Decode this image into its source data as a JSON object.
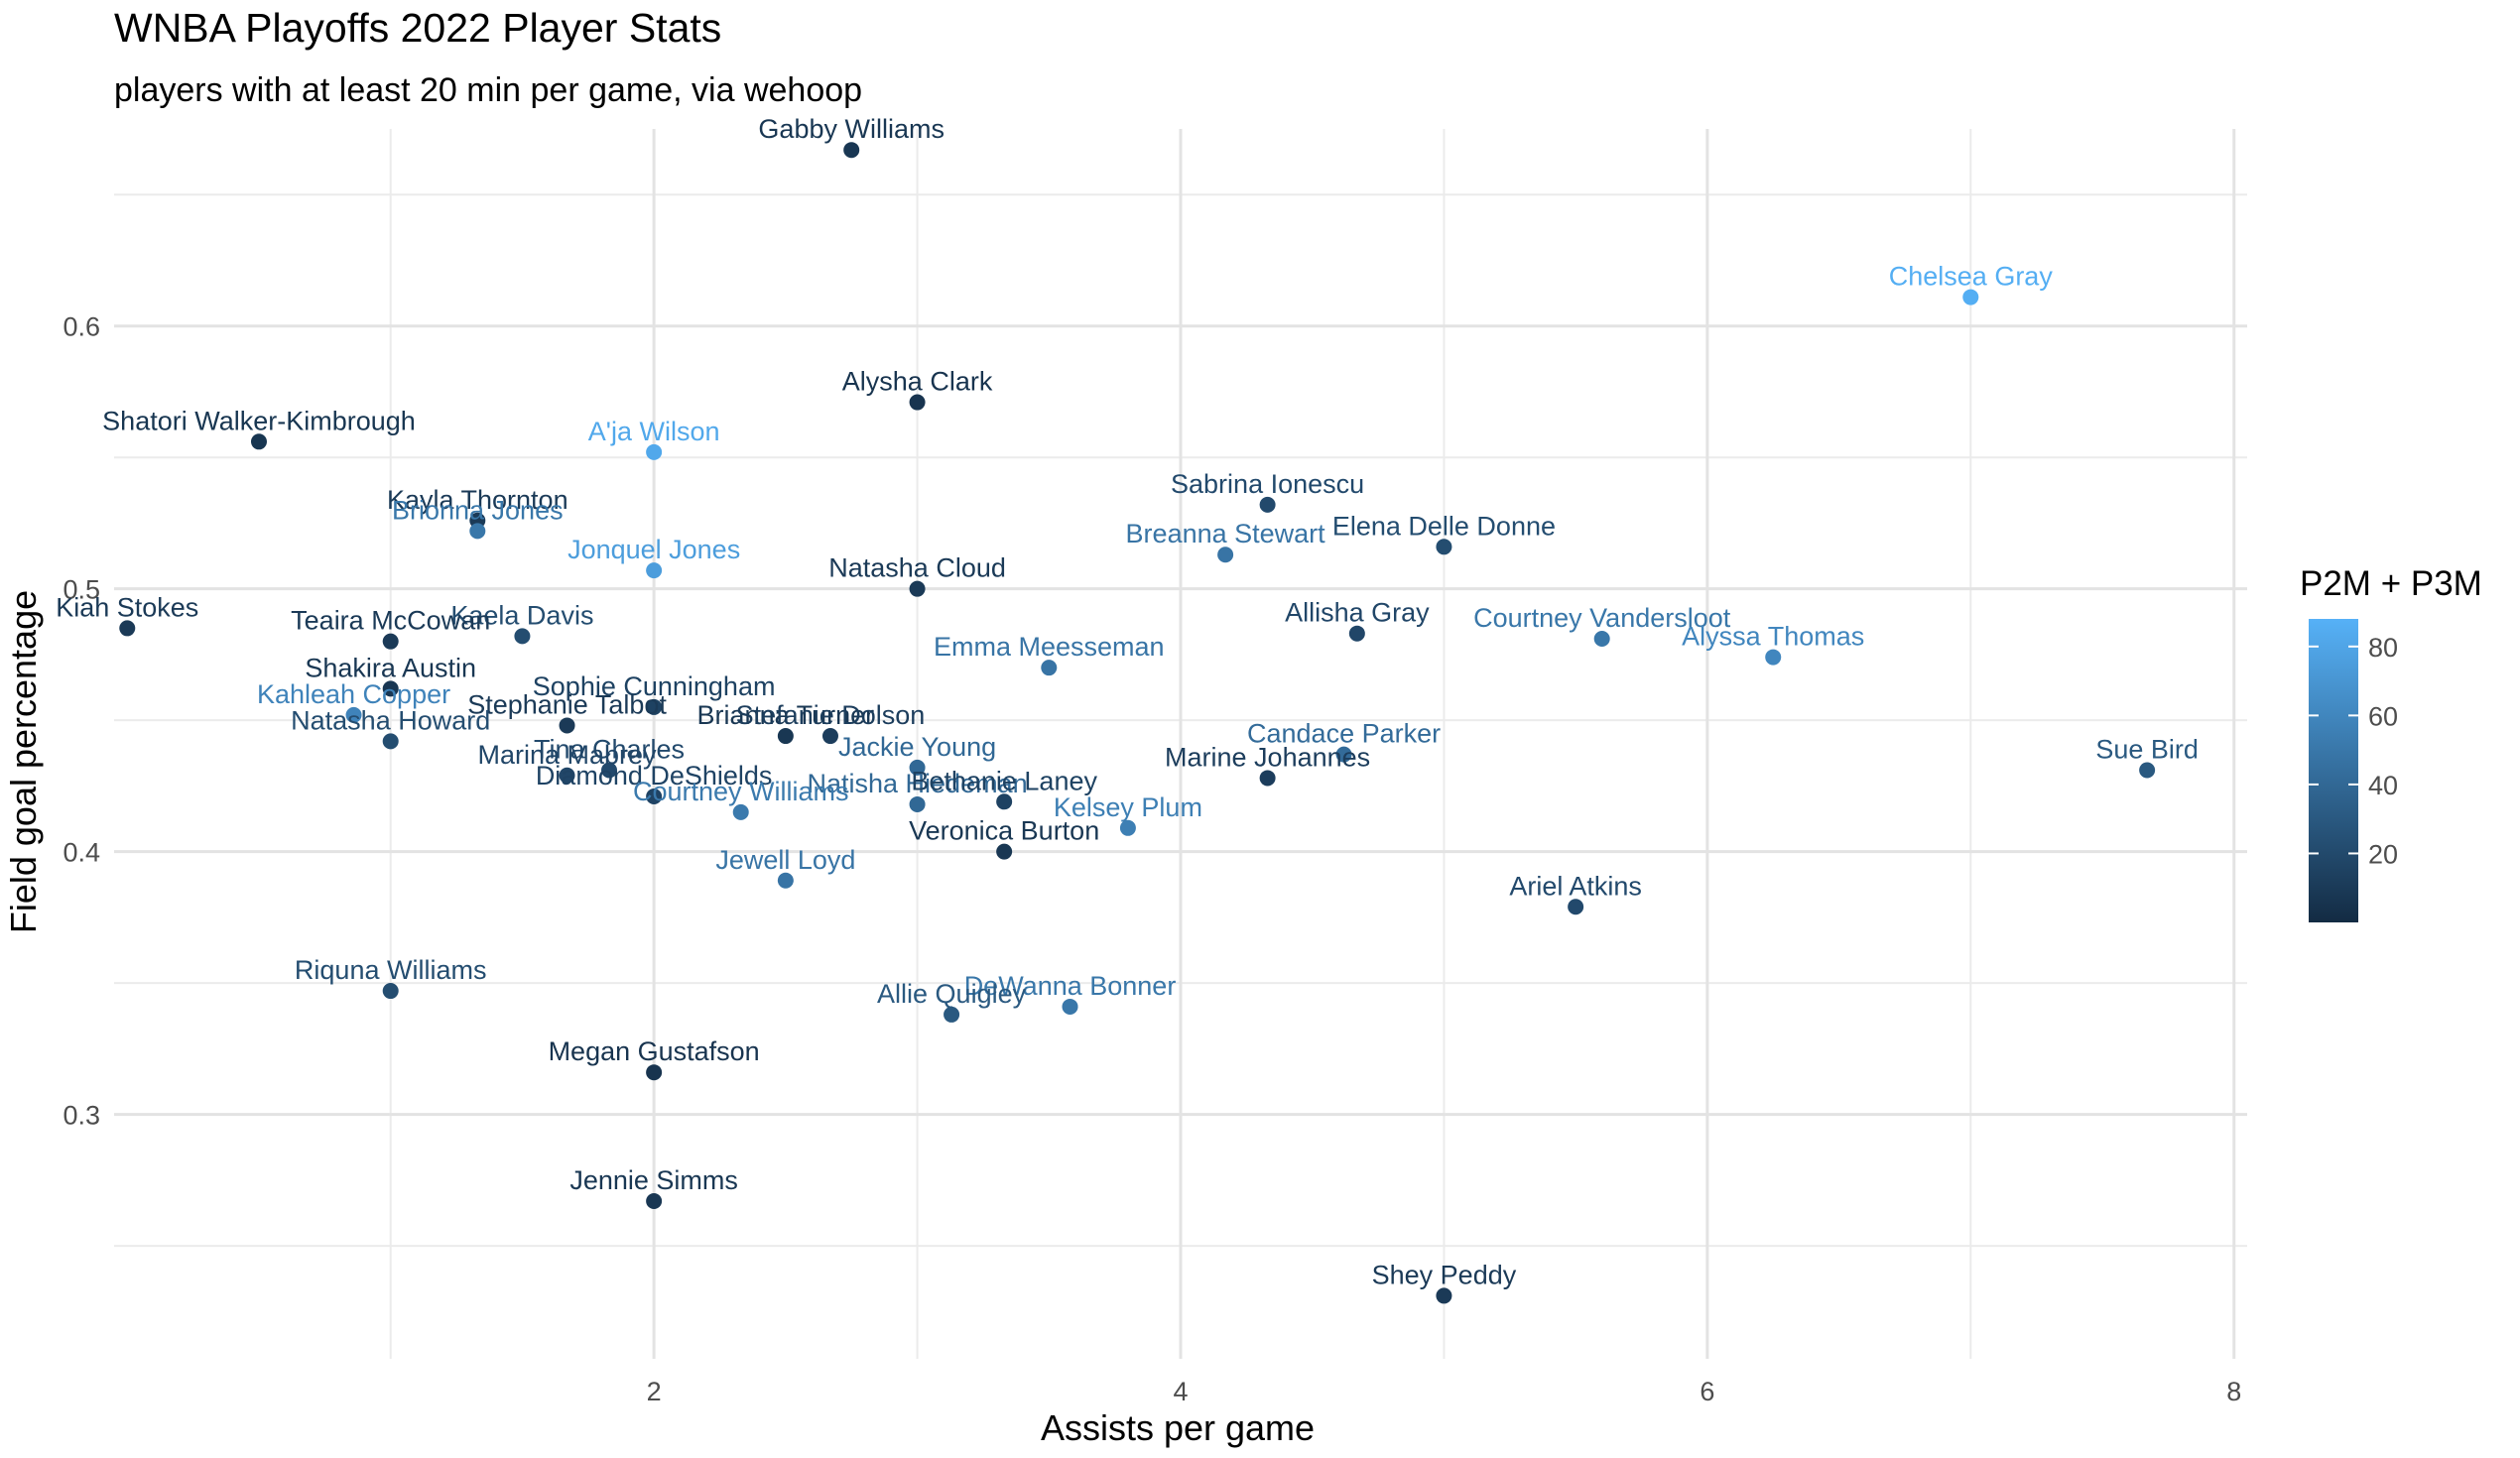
{
  "chart_data": {
    "type": "scatter",
    "title": "WNBA Playoffs 2022 Player Stats",
    "subtitle": "players with at least 20 min per game, via wehoop",
    "xlabel": "Assists per game",
    "ylabel": "Field goal percentage",
    "xlim": [
      -0.05,
      8.05
    ],
    "ylim": [
      0.207,
      0.675
    ],
    "x_ticks": [
      2,
      4,
      6,
      8
    ],
    "y_ticks": [
      0.3,
      0.4,
      0.5,
      0.6
    ],
    "grid": true,
    "legend": {
      "title": "P2M + P3M",
      "placement": "right",
      "ticks": [
        20,
        40,
        60,
        80
      ],
      "range": [
        0,
        88
      ],
      "color_low": "#132b43",
      "color_high": "#56b1f7"
    },
    "points": [
      {
        "name": "Gabby Williams",
        "x": 2.75,
        "y": 0.667,
        "color_value": 8
      },
      {
        "name": "Chelsea Gray",
        "x": 7.0,
        "y": 0.611,
        "color_value": 86
      },
      {
        "name": "Alysha Clark",
        "x": 3.0,
        "y": 0.571,
        "color_value": 6
      },
      {
        "name": "Shatori Walker-Kimbrough",
        "x": 0.5,
        "y": 0.556,
        "color_value": 7
      },
      {
        "name": "A'ja Wilson",
        "x": 2.0,
        "y": 0.552,
        "color_value": 82
      },
      {
        "name": "Sabrina Ionescu",
        "x": 4.33,
        "y": 0.532,
        "color_value": 20
      },
      {
        "name": "Kayla Thornton",
        "x": 1.33,
        "y": 0.526,
        "color_value": 10
      },
      {
        "name": "Brionna Jones",
        "x": 1.33,
        "y": 0.522,
        "color_value": 50
      },
      {
        "name": "Elena Delle Donne",
        "x": 5.0,
        "y": 0.516,
        "color_value": 22
      },
      {
        "name": "Breanna Stewart",
        "x": 4.17,
        "y": 0.513,
        "color_value": 48
      },
      {
        "name": "Jonquel Jones",
        "x": 2.0,
        "y": 0.507,
        "color_value": 75
      },
      {
        "name": "Natasha Cloud",
        "x": 3.0,
        "y": 0.5,
        "color_value": 10
      },
      {
        "name": "Kiah Stokes",
        "x": 0.0,
        "y": 0.485,
        "color_value": 10
      },
      {
        "name": "Allisha Gray",
        "x": 4.67,
        "y": 0.483,
        "color_value": 18
      },
      {
        "name": "Kaela Davis",
        "x": 1.5,
        "y": 0.482,
        "color_value": 22
      },
      {
        "name": "Courtney Vandersloot",
        "x": 5.6,
        "y": 0.481,
        "color_value": 50
      },
      {
        "name": "Teaira McCowan",
        "x": 1.0,
        "y": 0.48,
        "color_value": 10
      },
      {
        "name": "Alyssa Thomas",
        "x": 6.25,
        "y": 0.474,
        "color_value": 60
      },
      {
        "name": "Emma Meesseman",
        "x": 3.5,
        "y": 0.47,
        "color_value": 48
      },
      {
        "name": "Shakira Austin",
        "x": 1.0,
        "y": 0.462,
        "color_value": 8
      },
      {
        "name": "Sophie Cunningham",
        "x": 2.0,
        "y": 0.455,
        "color_value": 15
      },
      {
        "name": "Kahleah Copper",
        "x": 0.86,
        "y": 0.452,
        "color_value": 58
      },
      {
        "name": "Stephanie Talbot",
        "x": 1.67,
        "y": 0.448,
        "color_value": 10
      },
      {
        "name": "Brianna Turner",
        "x": 2.5,
        "y": 0.444,
        "color_value": 8
      },
      {
        "name": "Stefanie Dolson",
        "x": 2.67,
        "y": 0.444,
        "color_value": 12
      },
      {
        "name": "Natasha Howard",
        "x": 1.0,
        "y": 0.442,
        "color_value": 22
      },
      {
        "name": "Candace Parker",
        "x": 4.62,
        "y": 0.437,
        "color_value": 42
      },
      {
        "name": "Jackie Young",
        "x": 3.0,
        "y": 0.432,
        "color_value": 40
      },
      {
        "name": "Tina Charles",
        "x": 1.83,
        "y": 0.431,
        "color_value": 20
      },
      {
        "name": "Sue Bird",
        "x": 7.67,
        "y": 0.431,
        "color_value": 30
      },
      {
        "name": "Marina Mabrey",
        "x": 1.67,
        "y": 0.429,
        "color_value": 18
      },
      {
        "name": "Marine Johannes",
        "x": 4.33,
        "y": 0.428,
        "color_value": 12
      },
      {
        "name": "Diamond DeShields",
        "x": 2.0,
        "y": 0.421,
        "color_value": 16
      },
      {
        "name": "Natisha Hiedeman",
        "x": 3.0,
        "y": 0.418,
        "color_value": 40
      },
      {
        "name": "Bethanie Laney",
        "x": 3.33,
        "y": 0.419,
        "color_value": 15
      },
      {
        "name": "Courtney Williams",
        "x": 2.33,
        "y": 0.415,
        "color_value": 52
      },
      {
        "name": "Kelsey Plum",
        "x": 3.8,
        "y": 0.409,
        "color_value": 55
      },
      {
        "name": "Veronica Burton",
        "x": 3.33,
        "y": 0.4,
        "color_value": 8
      },
      {
        "name": "Jewell Loyd",
        "x": 2.5,
        "y": 0.389,
        "color_value": 48
      },
      {
        "name": "Ariel Atkins",
        "x": 5.5,
        "y": 0.379,
        "color_value": 20
      },
      {
        "name": "Riquna Williams",
        "x": 1.0,
        "y": 0.347,
        "color_value": 22
      },
      {
        "name": "DeWanna Bonner",
        "x": 3.58,
        "y": 0.341,
        "color_value": 50
      },
      {
        "name": "Allie Quigley",
        "x": 3.13,
        "y": 0.338,
        "color_value": 30
      },
      {
        "name": "Megan Gustafson",
        "x": 2.0,
        "y": 0.316,
        "color_value": 6
      },
      {
        "name": "Jennie Simms",
        "x": 2.0,
        "y": 0.267,
        "color_value": 8
      },
      {
        "name": "Shey Peddy",
        "x": 5.0,
        "y": 0.231,
        "color_value": 10
      }
    ]
  }
}
